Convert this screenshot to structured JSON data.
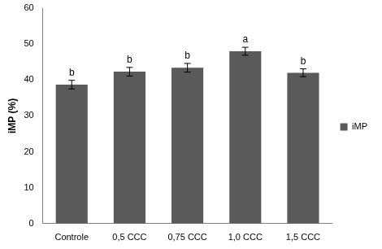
{
  "chart_data": {
    "type": "bar",
    "y_label": "iMP (%)",
    "categories": [
      "Controle",
      "0,5 CCC",
      "0,75 CCC",
      "1,0 CCC",
      "1,5 CCC"
    ],
    "series": [
      {
        "name": "iMP",
        "color": "#5a5a5a",
        "values": [
          38.7,
          42.3,
          43.4,
          48.0,
          42.0
        ],
        "errors": [
          1.2,
          1.2,
          1.2,
          1.1,
          1.1
        ]
      }
    ],
    "annotations": [
      "b",
      "b",
      "b",
      "a",
      "b"
    ],
    "ylim": [
      0,
      60
    ],
    "yticks": [
      0,
      10,
      20,
      30,
      40,
      50,
      60
    ],
    "grid": false,
    "legend": "right"
  }
}
